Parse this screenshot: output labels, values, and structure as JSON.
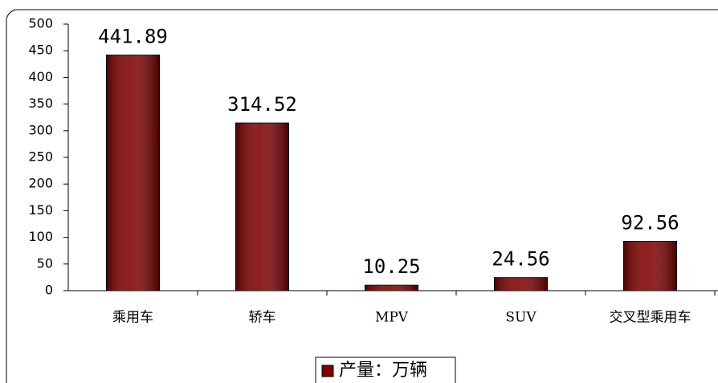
{
  "chart_data": {
    "type": "bar",
    "categories": [
      "乘用车",
      "轿车",
      "MPV",
      "SUV",
      "交叉型乘用车"
    ],
    "series": [
      {
        "name": "产量：万辆",
        "color": "#800000",
        "values": [
          441.89,
          314.52,
          10.25,
          24.56,
          92.56
        ]
      }
    ],
    "ylim": [
      0,
      500
    ],
    "yticks": [
      0,
      50,
      100,
      150,
      200,
      250,
      300,
      350,
      400,
      450,
      500
    ],
    "grid": false
  }
}
